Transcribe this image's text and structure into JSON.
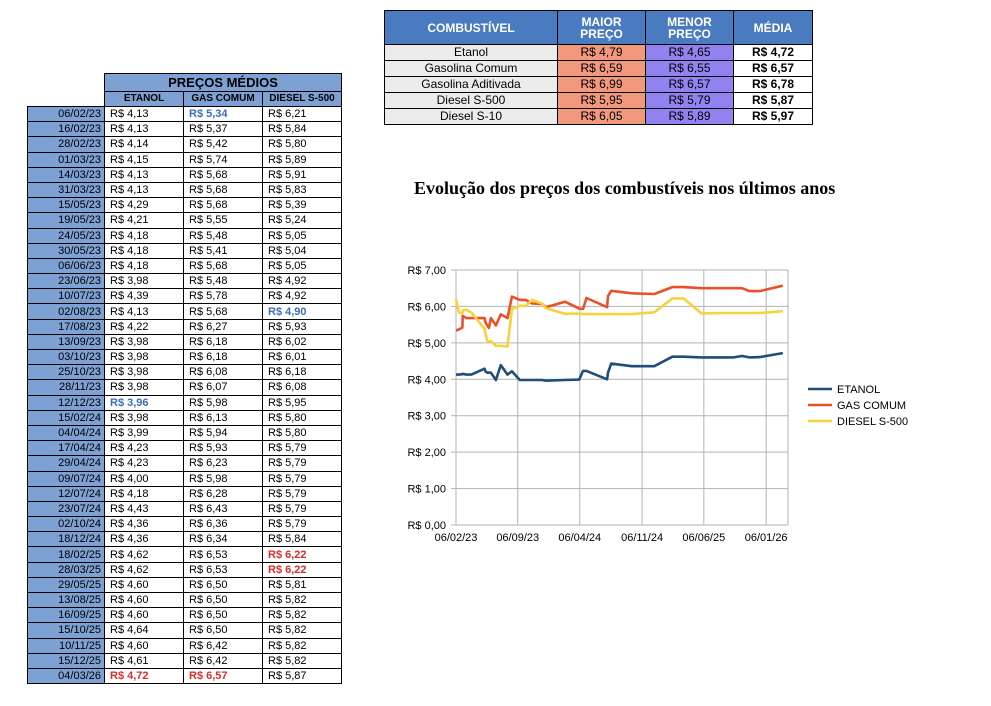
{
  "history": {
    "title": "PREÇOS MÉDIOS",
    "columns": [
      "ETANOL",
      "GAS COMUM",
      "DIESEL S-500"
    ],
    "rows": [
      {
        "date": "06/02/23",
        "etanol": "R$ 4,13",
        "gas": "R$ 5,34",
        "diesel": "R$ 6,21",
        "hl": {
          "gas": "low"
        }
      },
      {
        "date": "16/02/23",
        "etanol": "R$ 4,13",
        "gas": "R$ 5,37",
        "diesel": "R$ 5,84"
      },
      {
        "date": "28/02/23",
        "etanol": "R$ 4,14",
        "gas": "R$ 5,42",
        "diesel": "R$ 5,80"
      },
      {
        "date": "01/03/23",
        "etanol": "R$ 4,15",
        "gas": "R$ 5,74",
        "diesel": "R$ 5,89"
      },
      {
        "date": "14/03/23",
        "etanol": "R$ 4,13",
        "gas": "R$ 5,68",
        "diesel": "R$ 5,91"
      },
      {
        "date": "31/03/23",
        "etanol": "R$ 4,13",
        "gas": "R$ 5,68",
        "diesel": "R$ 5,83"
      },
      {
        "date": "15/05/23",
        "etanol": "R$ 4,29",
        "gas": "R$ 5,68",
        "diesel": "R$ 5,39"
      },
      {
        "date": "19/05/23",
        "etanol": "R$ 4,21",
        "gas": "R$ 5,55",
        "diesel": "R$ 5,24"
      },
      {
        "date": "24/05/23",
        "etanol": "R$ 4,18",
        "gas": "R$ 5,48",
        "diesel": "R$ 5,05"
      },
      {
        "date": "30/05/23",
        "etanol": "R$ 4,18",
        "gas": "R$ 5,41",
        "diesel": "R$ 5,04"
      },
      {
        "date": "06/06/23",
        "etanol": "R$ 4,18",
        "gas": "R$ 5,68",
        "diesel": "R$ 5,05"
      },
      {
        "date": "23/06/23",
        "etanol": "R$ 3,98",
        "gas": "R$ 5,48",
        "diesel": "R$ 4,92"
      },
      {
        "date": "10/07/23",
        "etanol": "R$ 4,39",
        "gas": "R$ 5,78",
        "diesel": "R$ 4,92"
      },
      {
        "date": "02/08/23",
        "etanol": "R$ 4,13",
        "gas": "R$ 5,68",
        "diesel": "R$ 4,90",
        "hl": {
          "diesel": "low"
        }
      },
      {
        "date": "17/08/23",
        "etanol": "R$ 4,22",
        "gas": "R$ 6,27",
        "diesel": "R$ 5,93"
      },
      {
        "date": "13/09/23",
        "etanol": "R$ 3,98",
        "gas": "R$ 6,18",
        "diesel": "R$ 6,02"
      },
      {
        "date": "03/10/23",
        "etanol": "R$ 3,98",
        "gas": "R$ 6,18",
        "diesel": "R$ 6,01"
      },
      {
        "date": "25/10/23",
        "etanol": "R$ 3,98",
        "gas": "R$ 6,08",
        "diesel": "R$ 6,18"
      },
      {
        "date": "28/11/23",
        "etanol": "R$ 3,98",
        "gas": "R$ 6,07",
        "diesel": "R$ 6,08"
      },
      {
        "date": "12/12/23",
        "etanol": "R$ 3,96",
        "gas": "R$ 5,98",
        "diesel": "R$ 5,95",
        "hl": {
          "etanol": "low"
        }
      },
      {
        "date": "15/02/24",
        "etanol": "R$ 3,98",
        "gas": "R$ 6,13",
        "diesel": "R$ 5,80"
      },
      {
        "date": "04/04/24",
        "etanol": "R$ 3,99",
        "gas": "R$ 5,94",
        "diesel": "R$ 5,80"
      },
      {
        "date": "17/04/24",
        "etanol": "R$ 4,23",
        "gas": "R$ 5,93",
        "diesel": "R$ 5,79"
      },
      {
        "date": "29/04/24",
        "etanol": "R$ 4,23",
        "gas": "R$ 6,23",
        "diesel": "R$ 5,79"
      },
      {
        "date": "09/07/24",
        "etanol": "R$ 4,00",
        "gas": "R$ 5,98",
        "diesel": "R$ 5,79"
      },
      {
        "date": "12/07/24",
        "etanol": "R$ 4,18",
        "gas": "R$ 6,28",
        "diesel": "R$ 5,79"
      },
      {
        "date": "23/07/24",
        "etanol": "R$ 4,43",
        "gas": "R$ 6,43",
        "diesel": "R$ 5,79"
      },
      {
        "date": "02/10/24",
        "etanol": "R$ 4,36",
        "gas": "R$ 6,36",
        "diesel": "R$ 5,79"
      },
      {
        "date": "18/12/24",
        "etanol": "R$ 4,36",
        "gas": "R$ 6,34",
        "diesel": "R$ 5,84"
      },
      {
        "date": "18/02/25",
        "etanol": "R$ 4,62",
        "gas": "R$ 6,53",
        "diesel": "R$ 6,22",
        "hl": {
          "diesel": "high"
        }
      },
      {
        "date": "28/03/25",
        "etanol": "R$ 4,62",
        "gas": "R$ 6,53",
        "diesel": "R$ 6,22",
        "hl": {
          "diesel": "high"
        }
      },
      {
        "date": "29/05/25",
        "etanol": "R$ 4,60",
        "gas": "R$ 6,50",
        "diesel": "R$ 5,81"
      },
      {
        "date": "13/08/25",
        "etanol": "R$ 4,60",
        "gas": "R$ 6,50",
        "diesel": "R$ 5,82"
      },
      {
        "date": "16/09/25",
        "etanol": "R$ 4,60",
        "gas": "R$ 6,50",
        "diesel": "R$ 5,82"
      },
      {
        "date": "15/10/25",
        "etanol": "R$ 4,64",
        "gas": "R$ 6,50",
        "diesel": "R$ 5,82"
      },
      {
        "date": "10/11/25",
        "etanol": "R$ 4,60",
        "gas": "R$ 6,42",
        "diesel": "R$ 5,82"
      },
      {
        "date": "15/12/25",
        "etanol": "R$ 4,61",
        "gas": "R$ 6,42",
        "diesel": "R$ 5,82"
      },
      {
        "date": "04/03/26",
        "etanol": "R$ 4,72",
        "gas": "R$ 6,57",
        "diesel": "R$ 5,87",
        "hl": {
          "etanol": "high",
          "gas": "high"
        }
      }
    ]
  },
  "summary": {
    "headers": [
      "COMBUSTÍVEL",
      "MAIOR PREÇO",
      "MENOR PREÇO",
      "MÉDIA"
    ],
    "rows": [
      {
        "fuel": "Etanol",
        "maior": "R$ 4,79",
        "menor": "R$ 4,65",
        "media": "R$ 4,72"
      },
      {
        "fuel": "Gasolina Comum",
        "maior": "R$ 6,59",
        "menor": "R$ 6,55",
        "media": "R$ 6,57"
      },
      {
        "fuel": "Gasolina Aditivada",
        "maior": "R$ 6,99",
        "menor": "R$ 6,57",
        "media": "R$ 6,78"
      },
      {
        "fuel": "Diesel S-500",
        "maior": "R$ 5,95",
        "menor": "R$ 5,79",
        "media": "R$ 5,87"
      },
      {
        "fuel": "Diesel S-10",
        "maior": "R$ 6,05",
        "menor": "R$ 5,89",
        "media": "R$ 5,97"
      }
    ]
  },
  "colors": {
    "header_blue": "#7ea1d3",
    "summary_header": "#4a7abf",
    "maior_bg": "#f2987d",
    "menor_bg": "#9282f0",
    "low_text": "#3a6fb7",
    "high_text": "#d92c2c"
  },
  "chart_data": {
    "type": "line",
    "title": "Evolução dos preços dos combustíveis nos últimos anos",
    "xlabel": "",
    "ylabel": "",
    "x_tick_labels": [
      "06/02/23",
      "06/09/23",
      "06/04/24",
      "06/11/24",
      "06/06/25",
      "06/01/26"
    ],
    "x_axis_span_days": 1140,
    "y_tick_labels": [
      "R$ 0,00",
      "R$ 1,00",
      "R$ 2,00",
      "R$ 3,00",
      "R$ 4,00",
      "R$ 5,00",
      "R$ 6,00",
      "R$ 7,00"
    ],
    "ylim": [
      0,
      7
    ],
    "grid": true,
    "legend_position": "right",
    "x": [
      "06/02/23",
      "16/02/23",
      "28/02/23",
      "01/03/23",
      "14/03/23",
      "31/03/23",
      "15/05/23",
      "19/05/23",
      "24/05/23",
      "30/05/23",
      "06/06/23",
      "23/06/23",
      "10/07/23",
      "02/08/23",
      "17/08/23",
      "13/09/23",
      "03/10/23",
      "25/10/23",
      "28/11/23",
      "12/12/23",
      "15/02/24",
      "04/04/24",
      "17/04/24",
      "29/04/24",
      "09/07/24",
      "12/07/24",
      "23/07/24",
      "02/10/24",
      "18/12/24",
      "18/02/25",
      "28/03/25",
      "29/05/25",
      "13/08/25",
      "16/09/25",
      "15/10/25",
      "10/11/25",
      "15/12/25",
      "04/03/26"
    ],
    "series": [
      {
        "name": "ETANOL",
        "color": "#1f4e79",
        "values": [
          4.13,
          4.13,
          4.14,
          4.15,
          4.13,
          4.13,
          4.29,
          4.21,
          4.18,
          4.18,
          4.18,
          3.98,
          4.39,
          4.13,
          4.22,
          3.98,
          3.98,
          3.98,
          3.98,
          3.96,
          3.98,
          3.99,
          4.23,
          4.23,
          4.0,
          4.18,
          4.43,
          4.36,
          4.36,
          4.62,
          4.62,
          4.6,
          4.6,
          4.6,
          4.64,
          4.6,
          4.61,
          4.72
        ]
      },
      {
        "name": "GAS COMUM",
        "color": "#e8512a",
        "values": [
          5.34,
          5.37,
          5.42,
          5.74,
          5.68,
          5.68,
          5.68,
          5.55,
          5.48,
          5.41,
          5.68,
          5.48,
          5.78,
          5.68,
          6.27,
          6.18,
          6.18,
          6.08,
          6.07,
          5.98,
          6.13,
          5.94,
          5.93,
          6.23,
          5.98,
          6.28,
          6.43,
          6.36,
          6.34,
          6.53,
          6.53,
          6.5,
          6.5,
          6.5,
          6.5,
          6.42,
          6.42,
          6.57
        ]
      },
      {
        "name": "DIESEL S-500",
        "color": "#f5d33a",
        "values": [
          6.21,
          5.84,
          5.8,
          5.89,
          5.91,
          5.83,
          5.39,
          5.24,
          5.05,
          5.04,
          5.05,
          4.92,
          4.92,
          4.9,
          5.93,
          6.02,
          6.01,
          6.18,
          6.08,
          5.95,
          5.8,
          5.8,
          5.79,
          5.79,
          5.79,
          5.79,
          5.79,
          5.79,
          5.84,
          6.22,
          6.22,
          5.81,
          5.82,
          5.82,
          5.82,
          5.82,
          5.82,
          5.87
        ]
      }
    ]
  }
}
